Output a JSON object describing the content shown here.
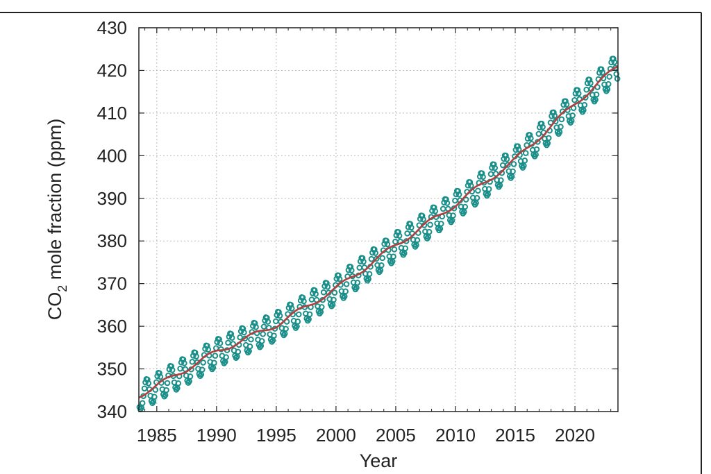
{
  "chart_data": {
    "type": "line",
    "xlabel": "Year",
    "ylabel_main": "CO",
    "ylabel_sub": "2",
    "ylabel_rest": " mole fraction (ppm)",
    "xlim": [
      1983.5,
      2023.6
    ],
    "ylim": [
      340,
      430
    ],
    "x_ticks": [
      1985,
      1990,
      1995,
      2000,
      2005,
      2010,
      2015,
      2020
    ],
    "x_tick_labels": [
      "1985",
      "1990",
      "1995",
      "2000",
      "2005",
      "2010",
      "2015",
      "2020"
    ],
    "y_ticks": [
      340,
      350,
      360,
      370,
      380,
      390,
      400,
      410,
      420,
      430
    ],
    "y_tick_labels": [
      "340",
      "350",
      "360",
      "370",
      "380",
      "390",
      "400",
      "410",
      "420",
      "430"
    ],
    "grid": true,
    "series": [
      {
        "style": "monthly points",
        "color": "#1a8f8a",
        "trend": {
          "x": [
            1983.5,
            1985,
            1990,
            1995,
            2000,
            2005,
            2010,
            2015,
            2020,
            2023.6
          ],
          "y": [
            343.8,
            346.0,
            354.0,
            360.3,
            368.8,
            379.0,
            388.6,
            399.0,
            412.2,
            421.0
          ]
        },
        "seasonal_amplitude": 3.2
      },
      {
        "style": "trend line",
        "color": "#b04040",
        "x": [
          1983.5,
          1985,
          1990,
          1995,
          2000,
          2005,
          2010,
          2015,
          2020,
          2023.6
        ],
        "y": [
          343.8,
          346.0,
          354.0,
          360.3,
          368.8,
          379.0,
          388.6,
          399.0,
          412.2,
          421.0
        ]
      }
    ]
  }
}
